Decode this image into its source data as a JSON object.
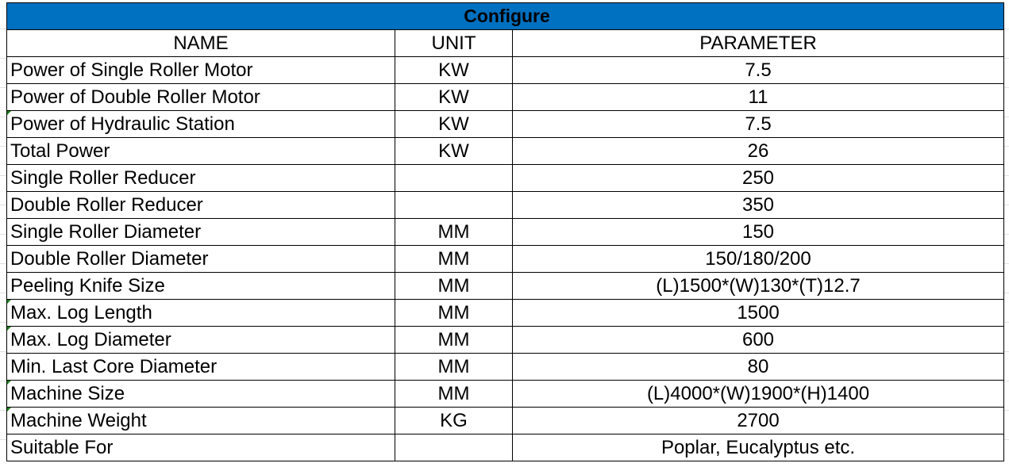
{
  "title": "Configure",
  "accent_color": "#0070C0",
  "headers": [
    "NAME",
    "UNIT",
    "PARAMETER"
  ],
  "rows": [
    {
      "name": "Power of Single Roller Motor",
      "unit": "KW",
      "parameter": "7.5",
      "flag": false
    },
    {
      "name": "Power of Double Roller Motor",
      "unit": "KW",
      "parameter": "11",
      "flag": false
    },
    {
      "name": "Power of Hydraulic Station",
      "unit": "KW",
      "parameter": "7.5",
      "flag": true
    },
    {
      "name": "Total Power",
      "unit": "KW",
      "parameter": "26",
      "flag": false
    },
    {
      "name": "Single Roller Reducer",
      "unit": "",
      "parameter": "250",
      "flag": false
    },
    {
      "name": "Double Roller Reducer",
      "unit": "",
      "parameter": "350",
      "flag": false
    },
    {
      "name": "Single Roller Diameter",
      "unit": "MM",
      "parameter": "150",
      "flag": false
    },
    {
      "name": "Double Roller Diameter",
      "unit": "MM",
      "parameter": "150/180/200",
      "flag": false
    },
    {
      "name": "Peeling Knife Size",
      "unit": "MM",
      "parameter": "(L)1500*(W)130*(T)12.7",
      "flag": false
    },
    {
      "name": "Max. Log Length",
      "unit": "MM",
      "parameter": "1500",
      "flag": true
    },
    {
      "name": "Max. Log Diameter",
      "unit": "MM",
      "parameter": "600",
      "flag": true
    },
    {
      "name": "Min. Last Core Diameter",
      "unit": "MM",
      "parameter": "80",
      "flag": false
    },
    {
      "name": "Machine Size",
      "unit": "MM",
      "parameter": "(L)4000*(W)1900*(H)1400",
      "flag": true
    },
    {
      "name": "Machine Weight",
      "unit": "KG",
      "parameter": "2700",
      "flag": true
    },
    {
      "name": "Suitable For",
      "unit": "",
      "parameter": "Poplar, Eucalyptus etc.",
      "flag": false
    }
  ]
}
